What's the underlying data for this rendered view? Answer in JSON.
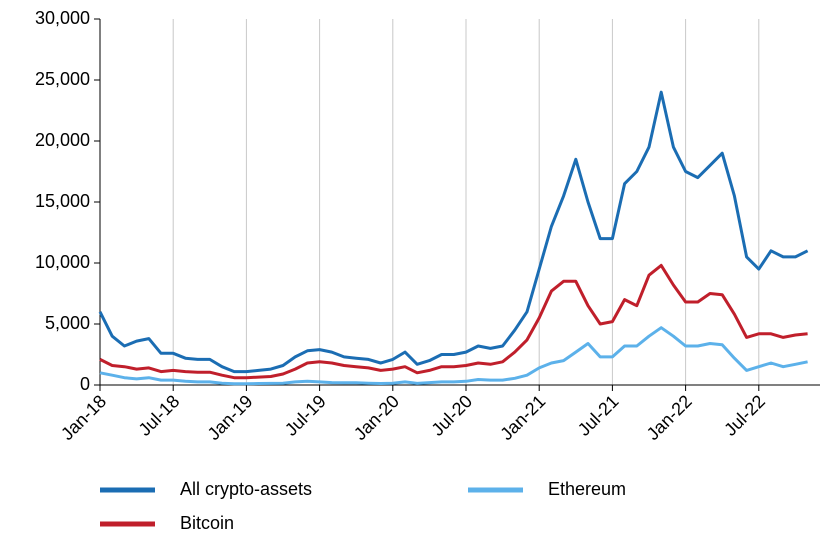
{
  "chart_data": {
    "type": "line",
    "categories": [
      "Jan-18",
      null,
      null,
      null,
      null,
      null,
      "Jul-18",
      null,
      null,
      null,
      null,
      null,
      "Jan-19",
      null,
      null,
      null,
      null,
      null,
      "Jul-19",
      null,
      null,
      null,
      null,
      null,
      "Jan-20",
      null,
      null,
      null,
      null,
      null,
      "Jul-20",
      null,
      null,
      null,
      null,
      null,
      "Jan-21",
      null,
      null,
      null,
      null,
      null,
      "Jul-21",
      null,
      null,
      null,
      null,
      null,
      "Jan-22",
      null,
      null,
      null,
      null,
      null,
      "Jul-22",
      null,
      null,
      null,
      null
    ],
    "series": [
      {
        "name": "All crypto-assets",
        "color": "#1b6db3",
        "values": [
          6000,
          4000,
          3200,
          3600,
          3800,
          2600,
          2600,
          2200,
          2100,
          2100,
          1500,
          1100,
          1100,
          1200,
          1300,
          1600,
          2300,
          2800,
          2900,
          2700,
          2300,
          2200,
          2100,
          1800,
          2100,
          2700,
          1700,
          2000,
          2500,
          2500,
          2700,
          3200,
          3000,
          3200,
          4500,
          6000,
          9500,
          13000,
          15500,
          18500,
          15000,
          12000,
          12000,
          16500,
          17500,
          19500,
          24000,
          19500,
          17500,
          17000,
          18000,
          19000,
          15500,
          10500,
          9500,
          11000,
          10500,
          10500,
          11000
        ]
      },
      {
        "name": "Ethereum",
        "color": "#5cb1ea",
        "values": [
          1000,
          800,
          600,
          500,
          600,
          400,
          400,
          300,
          250,
          250,
          150,
          100,
          100,
          120,
          130,
          150,
          250,
          300,
          250,
          200,
          180,
          180,
          150,
          120,
          150,
          250,
          130,
          200,
          250,
          250,
          300,
          450,
          400,
          400,
          550,
          800,
          1400,
          1800,
          2000,
          2700,
          3400,
          2300,
          2300,
          3200,
          3200,
          4000,
          4700,
          4000,
          3200,
          3200,
          3400,
          3300,
          2200,
          1200,
          1500,
          1800,
          1500,
          1700,
          1900
        ]
      },
      {
        "name": "Bitcoin",
        "color": "#c01f2b",
        "values": [
          2100,
          1600,
          1500,
          1300,
          1400,
          1100,
          1200,
          1100,
          1050,
          1050,
          800,
          600,
          600,
          650,
          700,
          900,
          1300,
          1800,
          1900,
          1800,
          1600,
          1500,
          1400,
          1200,
          1300,
          1500,
          1000,
          1200,
          1500,
          1500,
          1600,
          1800,
          1700,
          1900,
          2700,
          3700,
          5500,
          7700,
          8500,
          8500,
          6500,
          5000,
          5200,
          7000,
          6500,
          9000,
          9800,
          8200,
          6800,
          6800,
          7500,
          7400,
          5800,
          3900,
          4200,
          4200,
          3900,
          4100,
          4200
        ]
      }
    ],
    "ylim": [
      0,
      30000
    ],
    "yticks": [
      0,
      {
        "value": 5000,
        "label": "5,000"
      },
      {
        "value": 10000,
        "label": "10,000"
      },
      {
        "value": 15000,
        "label": "15,000"
      },
      {
        "value": 20000,
        "label": "20,000"
      },
      {
        "value": 25000,
        "label": "25,000"
      },
      {
        "value": 30000,
        "label": "30,000"
      }
    ],
    "grid": "x"
  }
}
